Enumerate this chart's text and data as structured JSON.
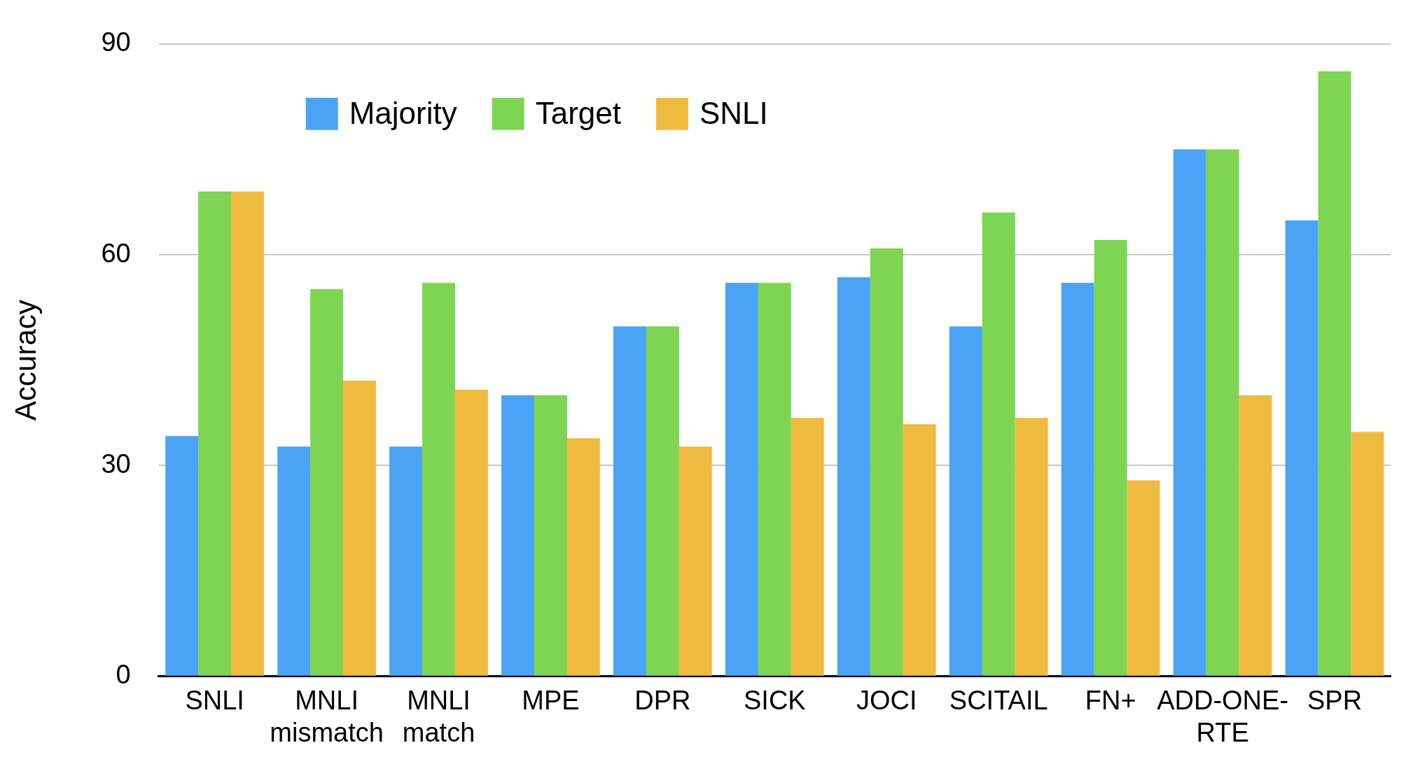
{
  "chart_data": {
    "type": "bar",
    "ylabel": "Accuracy",
    "categories": [
      "SNLI",
      "MNLI\nmismatch",
      "MNLI\nmatch",
      "MPE",
      "DPR",
      "SICK",
      "JOCI",
      "SCITAIL",
      "FN+",
      "ADD-ONE-\nRTE",
      "SPR"
    ],
    "series": [
      {
        "name": "Majority",
        "color": "#4aa3f5",
        "values": [
          34.2,
          32.7,
          32.7,
          40,
          49.8,
          56,
          56.8,
          49.8,
          56,
          75,
          64.9
        ]
      },
      {
        "name": "Target",
        "color": "#7ed453",
        "values": [
          69,
          55.1,
          56,
          40,
          49.8,
          56,
          60.9,
          66,
          62.1,
          75,
          86.1
        ]
      },
      {
        "name": "SNLI",
        "color": "#efbb3f",
        "values": [
          69,
          42.1,
          40.8,
          33.9,
          32.7,
          36.8,
          35.9,
          36.8,
          27.9,
          40,
          34.8
        ]
      }
    ],
    "ylim": [
      0,
      90
    ],
    "yticks": [
      0,
      30,
      60,
      90
    ],
    "grid": "y",
    "legend": "top left"
  }
}
